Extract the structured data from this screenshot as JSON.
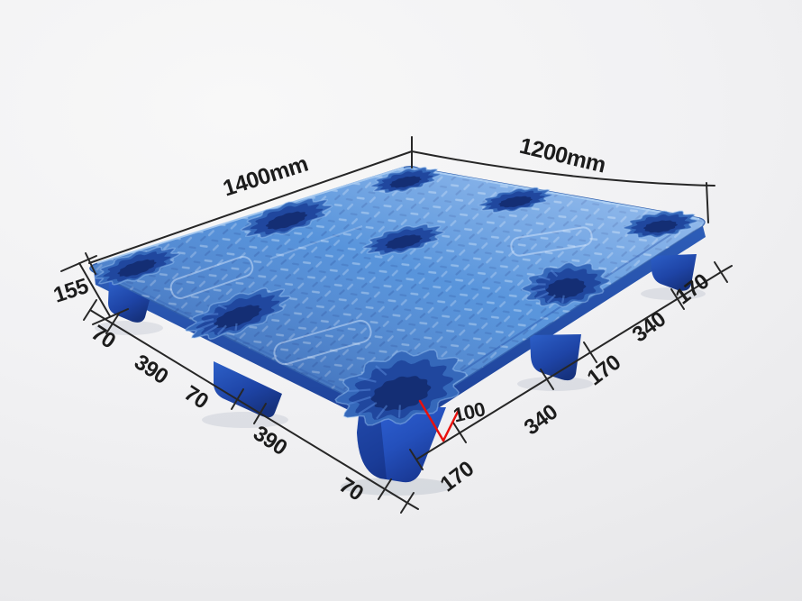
{
  "dimension_labels": {
    "top_left_edge": "1400mm",
    "top_right_edge": "1200mm",
    "side_height": "155",
    "left_edge_segments": [
      "70",
      "390",
      "70",
      "390",
      "70"
    ],
    "right_edge_segments": [
      "170",
      "340",
      "170",
      "340",
      "170"
    ],
    "leg_width_detail": "100"
  },
  "colors": {
    "pallet_blue": "#4f8ad6",
    "pallet_deep_blue": "#16337e",
    "annotation_line": "#262626",
    "detail_red": "#e8100c",
    "background": "#f0f0f2"
  }
}
